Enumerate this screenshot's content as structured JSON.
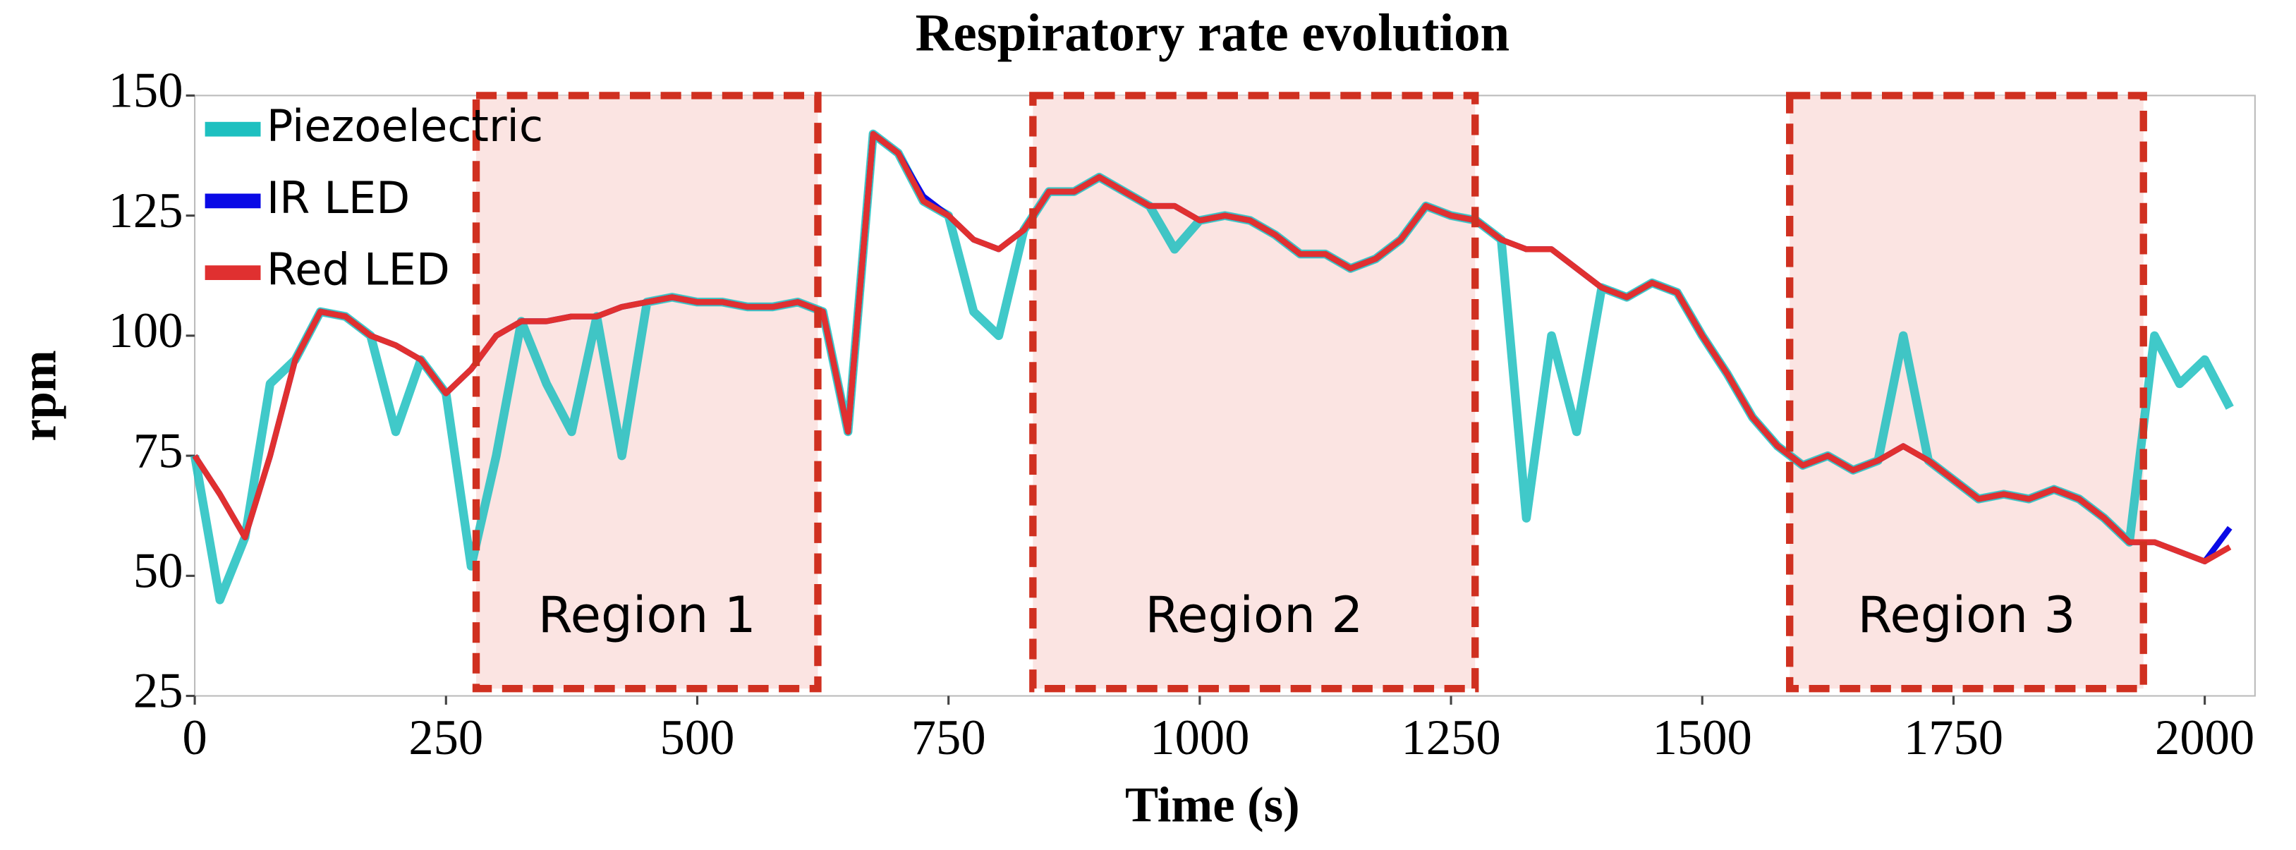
{
  "chart_data": {
    "type": "line",
    "title": "Respiratory rate evolution",
    "x_label": "Time (s)",
    "y_label": "rpm",
    "xlim": [
      0,
      2050
    ],
    "ylim": [
      25,
      150
    ],
    "xticks": [
      0,
      250,
      500,
      750,
      1000,
      1250,
      1500,
      1750,
      2000
    ],
    "yticks": [
      25,
      50,
      75,
      100,
      125,
      150
    ],
    "legend": "upper left",
    "x": [
      0,
      25,
      50,
      75,
      100,
      125,
      150,
      175,
      200,
      225,
      250,
      275,
      300,
      325,
      350,
      375,
      400,
      425,
      450,
      475,
      500,
      525,
      550,
      575,
      600,
      625,
      650,
      675,
      700,
      725,
      750,
      775,
      800,
      825,
      850,
      875,
      900,
      925,
      950,
      975,
      1000,
      1025,
      1050,
      1075,
      1100,
      1125,
      1150,
      1175,
      1200,
      1225,
      1250,
      1275,
      1300,
      1325,
      1350,
      1375,
      1400,
      1425,
      1450,
      1475,
      1500,
      1525,
      1550,
      1575,
      1600,
      1625,
      1650,
      1675,
      1700,
      1725,
      1750,
      1775,
      1800,
      1825,
      1850,
      1875,
      1900,
      1925,
      1950,
      1975,
      2000,
      2025
    ],
    "series": [
      {
        "name": "Piezoelectric",
        "color": "#1ec0c0",
        "values": [
          75,
          45,
          58,
          90,
          95,
          105,
          104,
          100,
          80,
          95,
          88,
          52,
          75,
          103,
          90,
          80,
          104,
          75,
          107,
          108,
          107,
          107,
          106,
          106,
          107,
          105,
          80,
          142,
          138,
          128,
          125,
          105,
          100,
          122,
          130,
          130,
          133,
          130,
          127,
          118,
          124,
          125,
          124,
          121,
          117,
          117,
          114,
          116,
          120,
          127,
          125,
          124,
          120,
          62,
          100,
          80,
          110,
          108,
          111,
          109,
          100,
          92,
          83,
          77,
          73,
          75,
          72,
          74,
          100,
          74,
          70,
          66,
          67,
          66,
          68,
          66,
          62,
          57,
          100,
          90,
          95,
          85
        ]
      },
      {
        "name": "IR LED",
        "color": "#0a0ae6",
        "values": [
          75,
          67,
          58,
          75,
          95,
          105,
          104,
          100,
          98,
          95,
          88,
          93,
          100,
          103,
          103,
          104,
          104,
          106,
          107,
          108,
          107,
          107,
          106,
          106,
          107,
          105,
          80,
          142,
          138,
          129,
          125,
          120,
          118,
          122,
          130,
          130,
          133,
          130,
          127,
          127,
          124,
          125,
          124,
          121,
          117,
          117,
          114,
          116,
          120,
          127,
          125,
          124,
          120,
          118,
          118,
          114,
          110,
          108,
          111,
          109,
          100,
          92,
          83,
          77,
          73,
          75,
          72,
          74,
          77,
          74,
          70,
          66,
          67,
          66,
          68,
          66,
          62,
          57,
          57,
          55,
          53,
          60
        ]
      },
      {
        "name": "Red LED",
        "color": "#e03030",
        "values": [
          75,
          67,
          58,
          75,
          95,
          105,
          104,
          100,
          98,
          95,
          88,
          93,
          100,
          103,
          103,
          104,
          104,
          106,
          107,
          108,
          107,
          107,
          106,
          106,
          107,
          105,
          80,
          142,
          138,
          128,
          125,
          120,
          118,
          122,
          130,
          130,
          133,
          130,
          127,
          127,
          124,
          125,
          124,
          121,
          117,
          117,
          114,
          116,
          120,
          127,
          125,
          124,
          120,
          118,
          118,
          114,
          110,
          108,
          111,
          109,
          100,
          92,
          83,
          77,
          73,
          75,
          72,
          74,
          77,
          74,
          70,
          66,
          67,
          66,
          68,
          66,
          62,
          57,
          57,
          55,
          53,
          56
        ]
      }
    ],
    "annotations": [
      {
        "label": "Region 1",
        "x": [
          280,
          620
        ]
      },
      {
        "label": "Region 2",
        "x": [
          834,
          1274
        ]
      },
      {
        "label": "Region 3",
        "x": [
          1587,
          1939
        ]
      }
    ]
  }
}
